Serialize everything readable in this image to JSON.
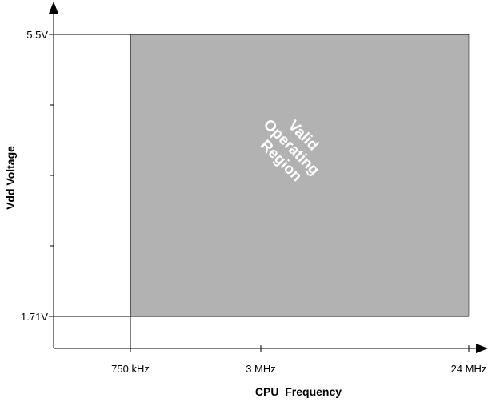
{
  "chart_data": {
    "type": "area",
    "title": "",
    "xlabel": "CPU  Frequency",
    "ylabel": "Vdd Voltage",
    "x_ticks": [
      {
        "label": "750 kHz",
        "value": 0.75
      },
      {
        "label": "3 MHz",
        "value": 3
      },
      {
        "label": "24 MHz",
        "value": 24
      }
    ],
    "y_ticks": [
      {
        "label": "1.71V",
        "value": 1.71
      },
      {
        "label": "5.5V",
        "value": 5.5
      }
    ],
    "y_minor_ticks": [
      2.66,
      3.61,
      4.55
    ],
    "region": {
      "label_lines": [
        "Valid",
        "Operating",
        "Region"
      ],
      "x_range": [
        0.75,
        24
      ],
      "y_range": [
        1.71,
        5.5
      ],
      "color": "#b2b2b2"
    },
    "grid": false,
    "legend": "none"
  }
}
